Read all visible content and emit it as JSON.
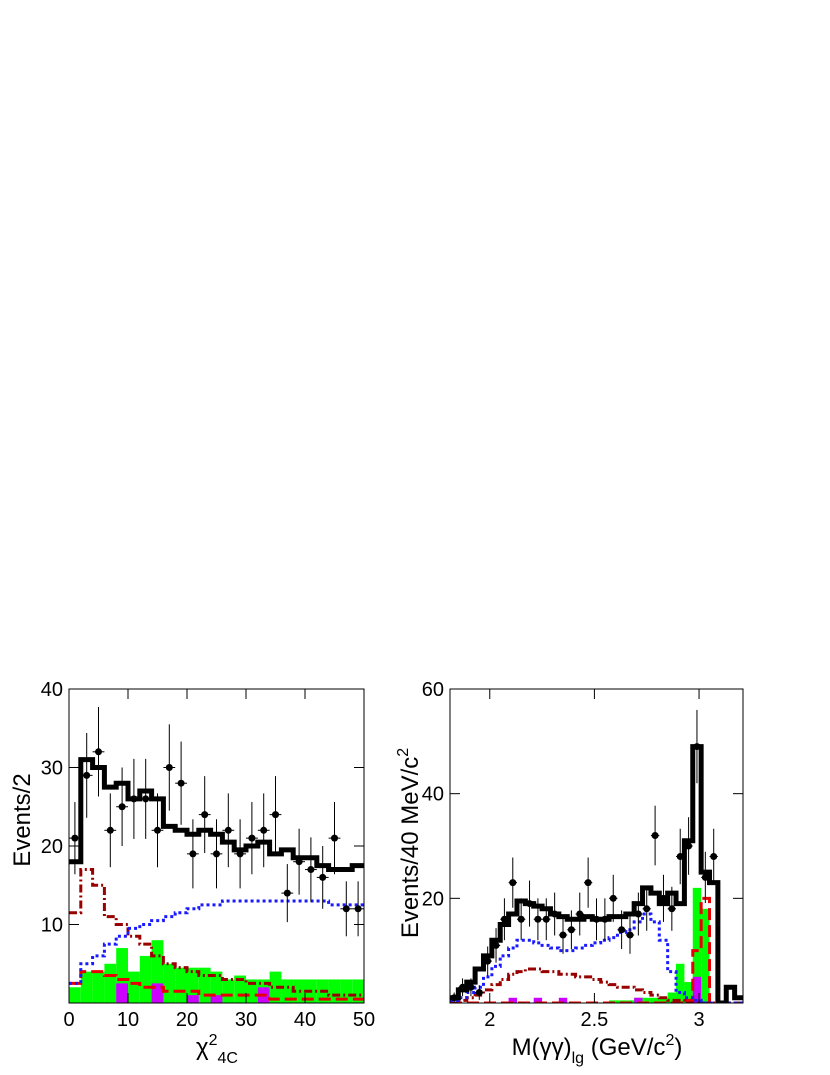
{
  "chart_data": [
    {
      "type": "histogram",
      "ylabel": [
        {
          "text": "Events/2",
          "shift": "none"
        }
      ],
      "xlabel": [
        {
          "text": "χ",
          "shift": "none"
        },
        {
          "text": "2",
          "shift": "sup"
        },
        {
          "text": "4C",
          "shift": "sub"
        }
      ],
      "xlim": [
        0,
        50
      ],
      "ylim": [
        0,
        40
      ],
      "xticks": [
        0,
        10,
        20,
        30,
        40,
        50
      ],
      "yticks": [
        10,
        20,
        30,
        40
      ],
      "bins": [
        0,
        2,
        4,
        6,
        8,
        10,
        12,
        14,
        16,
        18,
        20,
        22,
        24,
        26,
        28,
        30,
        32,
        34,
        36,
        38,
        40,
        42,
        44,
        46,
        48,
        50
      ],
      "series": [
        {
          "color": "#00ff00",
          "style": "fill",
          "values": [
            2,
            4,
            4,
            5,
            7,
            4,
            6,
            8,
            5,
            4.5,
            4.5,
            4.5,
            4,
            3,
            3.5,
            3,
            3,
            4,
            3,
            3,
            3,
            3,
            3,
            3,
            3
          ]
        },
        {
          "color": "#cc00ff",
          "style": "fill",
          "values": [
            0,
            0,
            0,
            0,
            2.5,
            0,
            0,
            2.5,
            0,
            0,
            1,
            0,
            1,
            0,
            0,
            0,
            2,
            0,
            0,
            0,
            0,
            0,
            0,
            0,
            0
          ]
        },
        {
          "color": "#e60000",
          "style": "dashed",
          "values": [
            2.5,
            4,
            4,
            3.5,
            3,
            2.5,
            2,
            2,
            1.5,
            1.5,
            1.5,
            1,
            1,
            1,
            1,
            1,
            1,
            0.5,
            0.5,
            0.5,
            0.5,
            0.5,
            0.5,
            0.5,
            0.5
          ]
        },
        {
          "color": "#990000",
          "style": "dashdot",
          "values": [
            11.5,
            17,
            15,
            11,
            10,
            8.5,
            7.5,
            6,
            5,
            4.5,
            4,
            3.5,
            3.5,
            3,
            3,
            2.5,
            2.5,
            2,
            2,
            1.5,
            1.5,
            1.5,
            1,
            1,
            1
          ]
        },
        {
          "color": "#1a1aff",
          "style": "dotted",
          "values": [
            2.5,
            5,
            6,
            7.5,
            8.5,
            9.5,
            10,
            10.5,
            11,
            11.5,
            12,
            12.5,
            12.5,
            13,
            13,
            13,
            13,
            13,
            13,
            13,
            13,
            13,
            12.5,
            12.5,
            12.5
          ]
        },
        {
          "color": "#000000",
          "style": "solid",
          "values": [
            18,
            31,
            30,
            27.5,
            28,
            26,
            27,
            26,
            22.5,
            22,
            21.5,
            22,
            21.5,
            20.5,
            19.5,
            20,
            20.5,
            19,
            19.5,
            18.5,
            18.5,
            17.5,
            17,
            17,
            17.5
          ]
        }
      ],
      "data": {
        "color": "#000000",
        "xerr": 1,
        "x": [
          1,
          3,
          5,
          7,
          9,
          11,
          13,
          15,
          17,
          19,
          21,
          23,
          25,
          27,
          29,
          31,
          33,
          35,
          37,
          39,
          41,
          43,
          45,
          47,
          49
        ],
        "values": [
          21,
          29,
          32,
          22,
          25,
          26,
          26,
          22,
          30,
          28,
          19,
          24,
          19,
          22,
          19,
          21,
          22,
          24,
          14,
          18,
          17,
          16,
          21,
          12,
          12
        ],
        "errors": [
          4.6,
          5.4,
          5.7,
          4.7,
          5,
          5.1,
          5.1,
          4.7,
          5.5,
          5.3,
          4.4,
          4.9,
          4.4,
          4.7,
          4.4,
          4.6,
          4.7,
          4.9,
          3.7,
          4.2,
          4.1,
          4,
          4.6,
          3.5,
          3.5
        ]
      }
    },
    {
      "type": "histogram",
      "ylabel": [
        {
          "text": "Events/40 MeV/c",
          "shift": "none"
        },
        {
          "text": "2",
          "shift": "sup"
        }
      ],
      "xlabel": [
        {
          "text": "M(γγ)",
          "shift": "none"
        },
        {
          "text": "lg",
          "shift": "sub"
        },
        {
          "text": " (GeV/c",
          "shift": "none"
        },
        {
          "text": "2",
          "shift": "sup"
        },
        {
          "text": ")",
          "shift": "none"
        }
      ],
      "xlim": [
        1.81,
        3.21
      ],
      "ylim": [
        0,
        60
      ],
      "xticks": [
        2,
        2.5,
        3
      ],
      "yticks": [
        20,
        40,
        60
      ],
      "bins": [
        1.81,
        1.85,
        1.89,
        1.93,
        1.97,
        2.01,
        2.05,
        2.09,
        2.13,
        2.17,
        2.21,
        2.25,
        2.29,
        2.33,
        2.37,
        2.41,
        2.45,
        2.49,
        2.53,
        2.57,
        2.61,
        2.65,
        2.69,
        2.73,
        2.77,
        2.81,
        2.85,
        2.89,
        2.93,
        2.97,
        3.01,
        3.05,
        3.09,
        3.13,
        3.17,
        3.21
      ],
      "series": [
        {
          "color": "#00ff00",
          "style": "fill",
          "values": [
            0,
            0,
            0,
            0,
            0,
            0,
            0,
            0,
            0,
            0,
            0,
            0,
            0,
            0,
            0,
            0,
            0,
            0,
            0,
            0.5,
            0.5,
            0.5,
            1,
            1,
            1,
            1,
            2,
            7.5,
            4,
            22,
            18,
            0,
            0,
            0,
            0
          ]
        },
        {
          "color": "#cc00ff",
          "style": "fill",
          "values": [
            0,
            0,
            0,
            0,
            0,
            0,
            0,
            1,
            0,
            0,
            1,
            0,
            0,
            1,
            0,
            0,
            0,
            0,
            0,
            0,
            0,
            0,
            1,
            0,
            0,
            0,
            0,
            0,
            0,
            5,
            0,
            0,
            0,
            0,
            0
          ]
        },
        {
          "color": "#e60000",
          "style": "dashed",
          "values": [
            0,
            0,
            0,
            0,
            0,
            0,
            0,
            0,
            0,
            0,
            0,
            0,
            0,
            0,
            0,
            0,
            0,
            0,
            0,
            0,
            0,
            0,
            0,
            0,
            0,
            0,
            0,
            0,
            0.5,
            10,
            20,
            0,
            0,
            0,
            0
          ]
        },
        {
          "color": "#990000",
          "style": "dashdot",
          "values": [
            0,
            0.5,
            1,
            1.5,
            2.5,
            3.5,
            4.5,
            5.5,
            6,
            6.5,
            6.5,
            6,
            6,
            5.5,
            5.5,
            5,
            5,
            4.5,
            4,
            3.5,
            3,
            3,
            2.5,
            2,
            1.5,
            1,
            0.5,
            0.5,
            0,
            0,
            0,
            0,
            0,
            0,
            0
          ]
        },
        {
          "color": "#1a1aff",
          "style": "dotted",
          "values": [
            0.5,
            1,
            2,
            3,
            5,
            7,
            9,
            10.5,
            12,
            12,
            11.5,
            11,
            10.5,
            10,
            10,
            10.5,
            11,
            11.5,
            12,
            12.5,
            13.5,
            14,
            15.5,
            17,
            15.5,
            12,
            6,
            2,
            1,
            0.5,
            0,
            0,
            0,
            0,
            0
          ]
        },
        {
          "color": "#000000",
          "style": "solid",
          "values": [
            1,
            2.5,
            4,
            6.5,
            9,
            12,
            15,
            17,
            19.5,
            19,
            18.5,
            18,
            17,
            16.5,
            16,
            16,
            16.5,
            16,
            16,
            16.5,
            16.5,
            17,
            19,
            22,
            21,
            19,
            21,
            19,
            31,
            49,
            25,
            23,
            0,
            3,
            1
          ]
        }
      ],
      "data": {
        "color": "#000000",
        "xerr": 0.02,
        "x": [
          1.83,
          1.87,
          1.91,
          1.95,
          1.99,
          2.03,
          2.07,
          2.11,
          2.15,
          2.19,
          2.23,
          2.27,
          2.31,
          2.35,
          2.39,
          2.43,
          2.47,
          2.51,
          2.55,
          2.59,
          2.63,
          2.67,
          2.71,
          2.75,
          2.79,
          2.83,
          2.87,
          2.91,
          2.95,
          2.99,
          3.03,
          3.07
        ],
        "values": [
          1,
          3,
          3,
          2,
          8,
          11,
          16,
          23,
          16,
          19,
          16,
          16,
          17,
          13,
          14,
          17,
          23,
          16,
          16,
          20,
          14,
          13,
          17,
          18,
          32,
          20,
          18,
          28,
          30,
          49,
          24,
          28
        ],
        "errors": [
          1,
          1.7,
          1.7,
          1.4,
          2.8,
          3.3,
          4,
          4.8,
          4,
          4.4,
          4,
          4,
          4.1,
          3.6,
          3.7,
          4.1,
          4.8,
          4,
          4,
          4.5,
          3.7,
          3.6,
          4.1,
          4.2,
          5.7,
          4.5,
          4.2,
          5.3,
          5.5,
          7,
          4.9,
          5.3
        ]
      }
    }
  ]
}
